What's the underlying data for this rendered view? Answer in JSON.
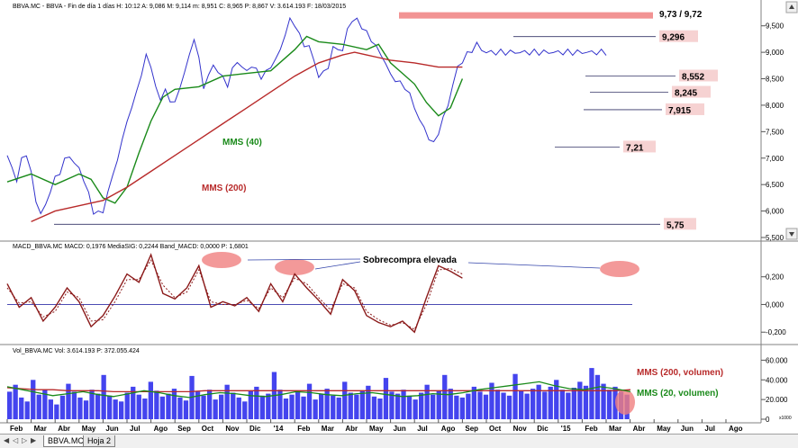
{
  "window": {
    "tabs": [
      "BBVA.MC",
      "Hoja 2"
    ],
    "active_tab": "BBVA.MC"
  },
  "icons": {
    "scroll_up": "scroll-up-icon",
    "scroll_down": "scroll-down-icon",
    "nav_first": "nav-first-icon",
    "nav_prev": "nav-prev-icon",
    "nav_next": "nav-next-icon",
    "nav_last": "nav-last-icon"
  },
  "colors": {
    "price": "#3333cc",
    "mms40": "#1a8a1a",
    "mms200": "#b82a2a",
    "macd": "#8b1a1a",
    "highlight": "#f08080",
    "volume": "#4444ee"
  },
  "chart_data": [
    {
      "type": "line",
      "panel": "price",
      "header": "BBVA.MC - BBVA - Fin de día 1 días  H: 10:12  A: 9,086  M: 9,114  m: 8,951  C: 8,965  P: 8,867  V: 3.614.193  F: 18/03/2015",
      "ylim": [
        5.5,
        9.75
      ],
      "yticks": [
        "9,500",
        "9,000",
        "8,500",
        "8,000",
        "7,500",
        "7,000",
        "6,500",
        "6,000",
        "5,500"
      ],
      "ytick_values": [
        9.5,
        9.0,
        8.5,
        8.0,
        7.5,
        7.0,
        6.5,
        6.0,
        5.5
      ],
      "x_months": [
        "Feb",
        "Mar",
        "Abr",
        "May",
        "Jun",
        "Jul",
        "Ago",
        "Sep",
        "Oct",
        "Nov",
        "Dic",
        "'14",
        "Feb",
        "Mar",
        "Abr",
        "May",
        "Jun",
        "Jul",
        "Ago",
        "Sep",
        "Oct",
        "Nov",
        "Dic",
        "'15",
        "Feb",
        "Mar",
        "Abr",
        "May",
        "Jun",
        "Jul",
        "Ago"
      ],
      "series": [
        {
          "name": "BBVA.MC",
          "x": [
            0.0,
            0.2,
            0.4,
            0.6,
            0.8,
            1.0,
            1.2,
            1.4,
            1.6,
            1.8,
            2.0,
            2.2,
            2.4,
            2.6,
            2.8,
            3.0,
            3.2,
            3.4,
            3.6,
            3.8,
            4.0,
            4.2,
            4.4,
            4.6,
            4.8,
            5.0,
            5.2,
            5.4,
            5.6,
            5.8,
            6.0,
            6.2,
            6.4,
            6.6,
            6.8,
            7.0,
            7.2,
            7.4,
            7.6,
            7.8,
            8.0,
            8.2,
            8.4,
            8.6,
            8.8,
            9.0,
            9.2,
            9.4,
            9.6,
            9.8,
            10.0,
            10.2,
            10.4,
            10.6,
            10.8,
            11.0,
            11.2,
            11.4,
            11.6,
            11.8,
            12.0,
            12.2,
            12.4,
            12.6,
            12.8,
            13.0,
            13.2,
            13.4,
            13.6,
            13.8,
            14.0,
            14.2,
            14.4,
            14.6,
            14.8,
            15.0,
            15.2,
            15.4,
            15.6,
            15.8,
            16.0,
            16.2,
            16.4,
            16.6,
            16.8,
            17.0,
            17.2,
            17.4,
            17.6,
            17.8,
            18.0,
            18.2,
            18.4,
            18.6,
            18.8,
            19.0,
            19.2,
            19.4,
            19.6,
            19.8,
            20.0,
            20.2,
            20.4,
            20.6,
            20.8,
            21.0,
            21.2,
            21.4,
            21.6,
            21.8,
            22.0,
            22.2,
            22.4,
            22.6,
            22.8,
            23.0,
            23.2,
            23.4,
            23.6,
            23.8,
            24.0,
            24.2,
            24.4,
            24.6,
            24.8,
            25.0
          ],
          "values": [
            7.05,
            6.8,
            6.6,
            6.95,
            7.1,
            6.7,
            6.2,
            5.95,
            6.1,
            6.4,
            6.6,
            6.75,
            6.95,
            7.05,
            6.9,
            6.8,
            6.6,
            6.3,
            6.0,
            5.95,
            6.0,
            6.35,
            6.65,
            7.0,
            7.3,
            7.75,
            7.9,
            8.3,
            8.55,
            8.95,
            8.75,
            8.3,
            8.15,
            8.25,
            8.1,
            8.05,
            8.3,
            8.65,
            8.9,
            9.3,
            8.85,
            8.35,
            8.55,
            8.75,
            8.65,
            8.5,
            8.4,
            8.65,
            8.85,
            8.7,
            8.65,
            8.75,
            8.65,
            8.55,
            8.6,
            8.75,
            8.85,
            9.05,
            9.35,
            9.6,
            9.55,
            9.3,
            9.15,
            9.1,
            8.85,
            8.55,
            8.6,
            8.75,
            9.05,
            9.1,
            9.0,
            9.45,
            9.6,
            9.6,
            9.5,
            9.35,
            9.25,
            9.1,
            8.95,
            8.8,
            8.55,
            8.5,
            8.4,
            8.35,
            8.2,
            7.95,
            7.75,
            7.55,
            7.4,
            7.25,
            7.5,
            7.75,
            8.0,
            8.4,
            8.7,
            8.85,
            8.95,
            9.05,
            9.15,
            9.05,
            9.0,
            9.0,
            9.0,
            9.0,
            9.0,
            9.0,
            9.0,
            9.0,
            9.0,
            9.0,
            9.0,
            9.0,
            9.0,
            9.0,
            9.0,
            9.0,
            9.0,
            9.0,
            9.0,
            9.0,
            9.0,
            9.0,
            9.0,
            9.0,
            9.0,
            9.0
          ]
        },
        {
          "name": "MMS (40)",
          "x": [
            0.0,
            1.0,
            2.0,
            3.0,
            3.5,
            4.0,
            4.5,
            5.0,
            5.5,
            6.0,
            6.5,
            7.0,
            8.0,
            9.0,
            10.0,
            11.0,
            12.0,
            12.5,
            13.0,
            14.0,
            15.0,
            15.5,
            16.0,
            16.5,
            17.0,
            17.5,
            18.0,
            18.5,
            19.0
          ],
          "values": [
            6.55,
            6.7,
            6.5,
            6.7,
            6.6,
            6.25,
            6.15,
            6.45,
            7.1,
            7.7,
            8.15,
            8.3,
            8.35,
            8.55,
            8.6,
            8.65,
            9.05,
            9.3,
            9.2,
            9.15,
            9.05,
            9.15,
            8.8,
            8.6,
            8.4,
            8.05,
            7.8,
            7.95,
            8.5
          ]
        },
        {
          "name": "MMS (200)",
          "x": [
            1.0,
            2.0,
            3.0,
            4.0,
            5.0,
            6.0,
            7.0,
            8.0,
            9.0,
            10.0,
            11.0,
            12.0,
            13.0,
            14.0,
            14.5,
            15.0,
            15.5,
            16.0,
            17.0,
            18.0,
            19.0
          ],
          "values": [
            5.8,
            6.0,
            6.1,
            6.2,
            6.45,
            6.75,
            7.05,
            7.35,
            7.65,
            7.95,
            8.25,
            8.55,
            8.8,
            8.95,
            9.0,
            8.95,
            8.9,
            8.85,
            8.8,
            8.72,
            8.72
          ]
        }
      ],
      "levels": [
        {
          "label": "9,73 / 9,72",
          "value": 9.73
        },
        {
          "label": "9,296",
          "value": 9.296
        },
        {
          "label": "8,552",
          "value": 8.552
        },
        {
          "label": "8,245",
          "value": 8.245
        },
        {
          "label": "7,915",
          "value": 7.915
        },
        {
          "label": "7,21",
          "value": 7.21
        },
        {
          "label": "5,75",
          "value": 5.75
        }
      ],
      "annotations": [
        "MMS (40)",
        "MMS (200)"
      ]
    },
    {
      "type": "line",
      "panel": "macd",
      "header": "MACD_BBVA.MC  MACD: 0,1976  MediaSIG: 0,2244  Band_MACD: 0,0000  P: 1,6801",
      "ylim": [
        -0.27,
        0.38
      ],
      "yticks": [
        "0,200",
        "0,000",
        "-0,200"
      ],
      "ytick_values": [
        0.2,
        0.0,
        -0.2
      ],
      "series": [
        {
          "name": "MACD",
          "x": [
            0.0,
            0.5,
            1.0,
            1.5,
            2.0,
            2.5,
            3.0,
            3.5,
            4.0,
            4.5,
            5.0,
            5.5,
            6.0,
            6.5,
            7.0,
            7.5,
            8.0,
            8.5,
            9.0,
            9.5,
            10.0,
            10.5,
            11.0,
            11.5,
            12.0,
            12.5,
            13.0,
            13.5,
            14.0,
            14.5,
            15.0,
            15.5,
            16.0,
            16.5,
            17.0,
            17.5,
            18.0,
            18.5,
            19.0
          ],
          "values": [
            0.15,
            -0.02,
            0.05,
            -0.12,
            -0.02,
            0.12,
            0.02,
            -0.16,
            -0.08,
            0.06,
            0.22,
            0.16,
            0.36,
            0.08,
            0.04,
            0.12,
            0.28,
            -0.02,
            0.02,
            -0.01,
            0.05,
            -0.05,
            0.15,
            0.02,
            0.22,
            0.12,
            0.03,
            -0.07,
            0.18,
            0.1,
            -0.08,
            -0.13,
            -0.16,
            -0.12,
            -0.2,
            0.05,
            0.28,
            0.24,
            0.19
          ]
        },
        {
          "name": "MediaSIG",
          "x": [
            0.0,
            0.5,
            1.0,
            1.5,
            2.0,
            2.5,
            3.0,
            3.5,
            4.0,
            4.5,
            5.0,
            5.5,
            6.0,
            6.5,
            7.0,
            7.5,
            8.0,
            8.5,
            9.0,
            9.5,
            10.0,
            10.5,
            11.0,
            11.5,
            12.0,
            12.5,
            13.0,
            13.5,
            14.0,
            14.5,
            15.0,
            15.5,
            16.0,
            16.5,
            17.0,
            17.5,
            18.0,
            18.5,
            19.0
          ],
          "values": [
            0.12,
            0.01,
            0.02,
            -0.09,
            -0.05,
            0.09,
            0.05,
            -0.12,
            -0.11,
            0.02,
            0.18,
            0.18,
            0.32,
            0.14,
            0.05,
            0.09,
            0.25,
            0.02,
            0.0,
            0.0,
            0.03,
            -0.03,
            0.12,
            0.05,
            0.19,
            0.15,
            0.05,
            -0.04,
            0.15,
            0.12,
            -0.05,
            -0.11,
            -0.15,
            -0.13,
            -0.18,
            0.0,
            0.25,
            0.26,
            0.22
          ]
        }
      ],
      "annotation": "Sobrecompra elevada"
    },
    {
      "type": "bar",
      "panel": "volume",
      "header": "Vol_BBVA.MC  Vol: 3.614.193  P: 372.055.424",
      "ylim": [
        0,
        64000000
      ],
      "yticks": [
        "60.000",
        "40.000",
        "20.000",
        "0"
      ],
      "ytick_values": [
        60000000,
        40000000,
        20000000,
        0
      ],
      "series": [
        {
          "name": "Volumen",
          "values": [
            28,
            35,
            22,
            18,
            40,
            25,
            30,
            20,
            15,
            24,
            36,
            28,
            22,
            19,
            30,
            26,
            45,
            24,
            20,
            18,
            27,
            33,
            25,
            21,
            38,
            29,
            23,
            26,
            31,
            22,
            19,
            44,
            28,
            24,
            30,
            20,
            25,
            35,
            27,
            22,
            18,
            29,
            33,
            24,
            26,
            48,
            30,
            21,
            25,
            28,
            23,
            36,
            20,
            26,
            31,
            24,
            22,
            38,
            27,
            25,
            29,
            34,
            23,
            21,
            42,
            28,
            26,
            30,
            24,
            20,
            27,
            35,
            25,
            29,
            45,
            31,
            24,
            22,
            26,
            33,
            28,
            25,
            37,
            30,
            27,
            24,
            46,
            29,
            26,
            31,
            35,
            28,
            33,
            40,
            30,
            27,
            32,
            38,
            34,
            52,
            45,
            36,
            30,
            33,
            28,
            25
          ]
        },
        {
          "name": "MMS (200, volumen)",
          "values": [
            32,
            31,
            30,
            30,
            29,
            29,
            29,
            28,
            28,
            28,
            28,
            28,
            28,
            29,
            29,
            29,
            29,
            29,
            29,
            29,
            29,
            29,
            29,
            29,
            29,
            29,
            29,
            29,
            29,
            29,
            29,
            29,
            29,
            29,
            29,
            29,
            29,
            29,
            29,
            29,
            29,
            30
          ]
        },
        {
          "name": "MMS (20, volumen)",
          "values": [
            33,
            30,
            27,
            24,
            26,
            28,
            25,
            23,
            26,
            29,
            27,
            24,
            22,
            25,
            27,
            26,
            24,
            23,
            25,
            28,
            27,
            25,
            24,
            26,
            27,
            25,
            23,
            24,
            26,
            25,
            27,
            30,
            32,
            34,
            36,
            38,
            34,
            31,
            30,
            33,
            31,
            28
          ]
        }
      ],
      "legend": [
        "MMS (200, volumen)",
        "MMS (20, volumen)"
      ],
      "ylabel_unit": "x1000"
    }
  ]
}
